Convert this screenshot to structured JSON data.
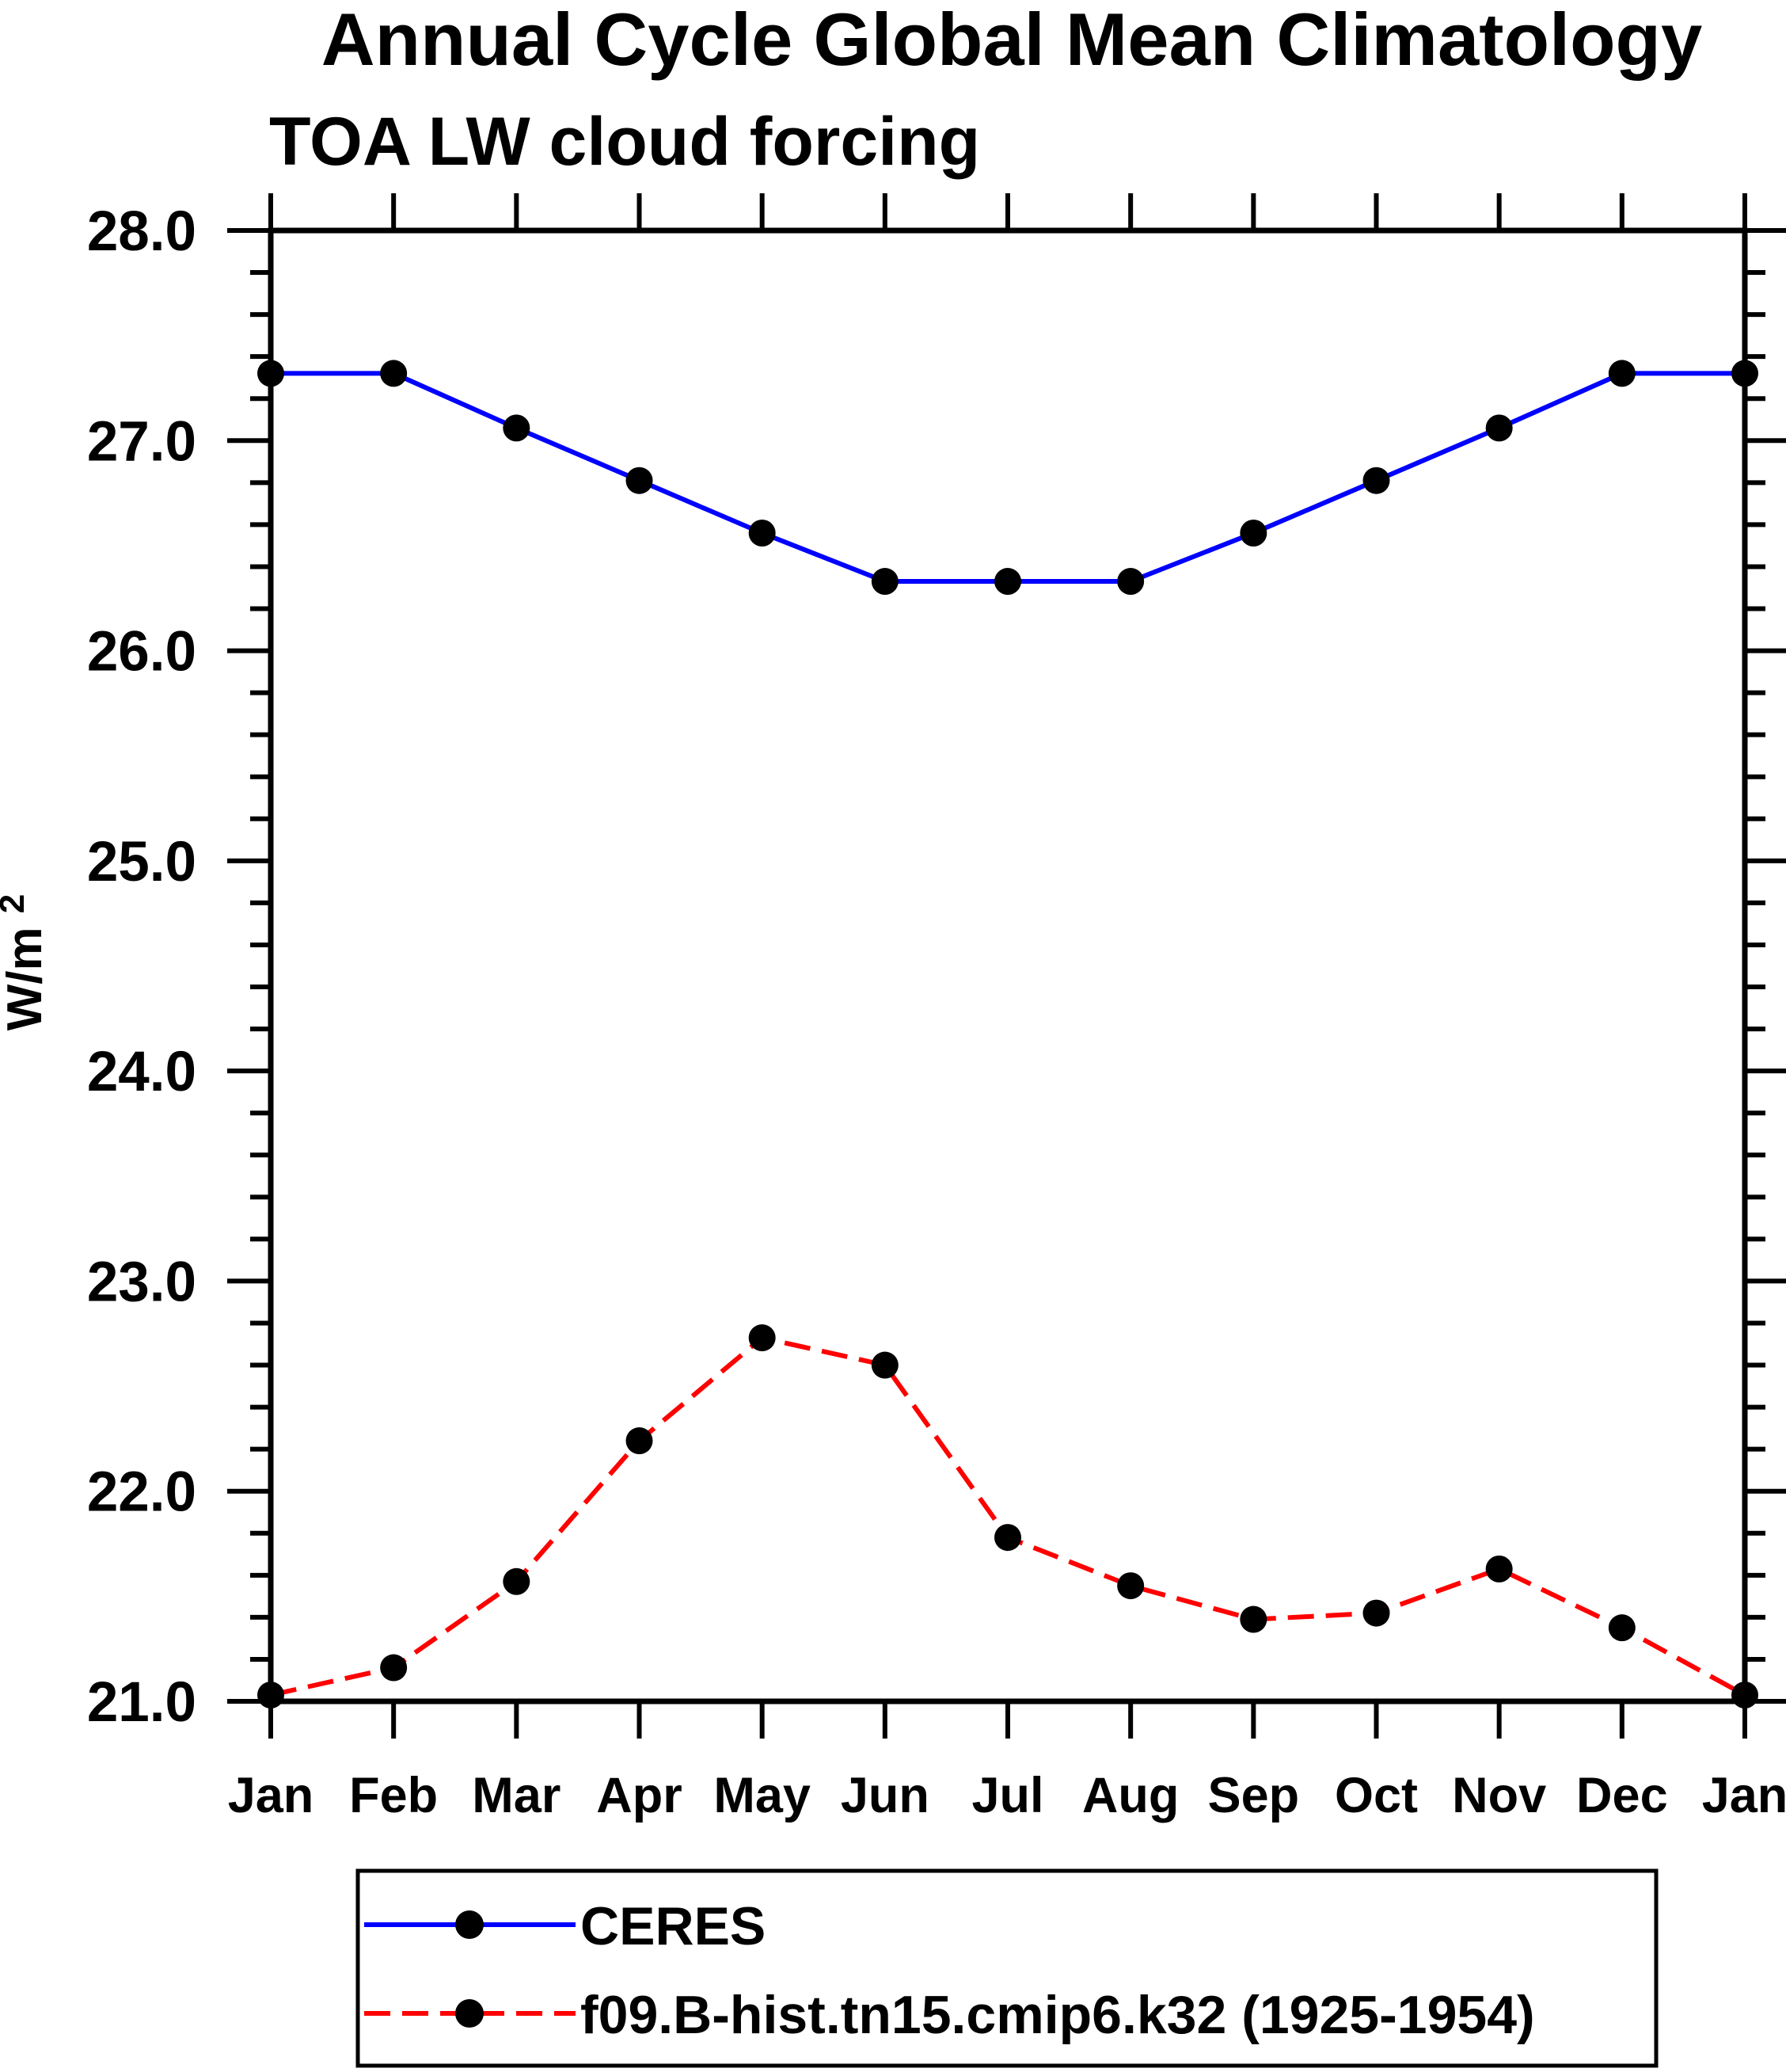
{
  "header": {
    "title": "Annual Cycle Global Mean Climatology",
    "subtitle": "TOA LW cloud forcing"
  },
  "axes": {
    "y_unit_main": "W/m",
    "y_unit_sup": "2"
  },
  "chart_data": {
    "type": "line",
    "title": "Annual Cycle Global Mean Climatology",
    "subtitle": "TOA LW cloud forcing",
    "xlabel": "",
    "ylabel": "W/m2",
    "x_categories": [
      "Jan",
      "Feb",
      "Mar",
      "Apr",
      "May",
      "Jun",
      "Jul",
      "Aug",
      "Sep",
      "Oct",
      "Nov",
      "Dec",
      "Jan"
    ],
    "ylim": [
      21.0,
      28.0
    ],
    "y_major_step": 1.0,
    "y_minor_step": 0.2,
    "y_tick_labels": [
      "21.0",
      "22.0",
      "23.0",
      "24.0",
      "25.0",
      "26.0",
      "27.0",
      "28.0"
    ],
    "grid": false,
    "legend_position": "bottom",
    "frame_color": "#000000",
    "series": [
      {
        "name": "CERES",
        "line_color": "#0000ff",
        "line_style": "solid",
        "marker": "filled-circle",
        "marker_color": "#000000",
        "values": [
          27.32,
          27.32,
          27.06,
          26.81,
          26.56,
          26.33,
          26.33,
          26.33,
          26.56,
          26.81,
          27.06,
          27.32,
          27.32
        ]
      },
      {
        "name": "f09.B-hist.tn15.cmip6.k32 (1925-1954)",
        "line_color": "#ff0000",
        "line_style": "dashed",
        "marker": "filled-circle",
        "marker_color": "#000000",
        "values": [
          21.03,
          21.16,
          21.57,
          22.24,
          22.73,
          22.6,
          21.78,
          21.55,
          21.39,
          21.42,
          21.63,
          21.35,
          21.03
        ]
      }
    ]
  }
}
